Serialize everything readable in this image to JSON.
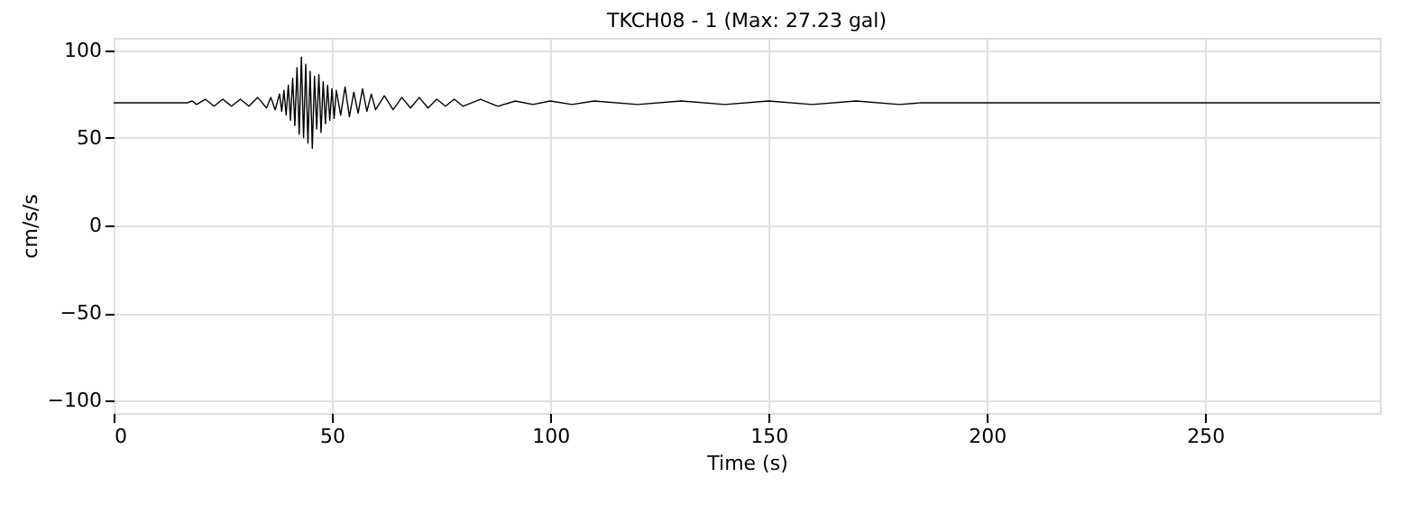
{
  "chart_data": {
    "type": "line",
    "title": "TKCH08 - 1 (Max: 27.23 gal)",
    "xlabel": "Time (s)",
    "ylabel": "cm/s/s",
    "x": [
      0,
      17,
      18,
      19,
      21,
      23,
      25,
      27,
      29,
      31,
      33,
      35,
      36,
      37,
      38,
      38.5,
      39,
      39.5,
      40,
      40.5,
      41,
      41.5,
      42,
      42.5,
      43,
      43.5,
      44,
      44.5,
      45,
      45.5,
      46,
      46.5,
      47,
      47.5,
      48,
      48.5,
      49,
      49.5,
      50,
      50.5,
      51,
      52,
      53,
      54,
      55,
      56,
      57,
      58,
      59,
      60,
      62,
      64,
      66,
      68,
      70,
      72,
      74,
      76,
      78,
      80,
      84,
      88,
      92,
      96,
      100,
      105,
      110,
      120,
      130,
      140,
      150,
      160,
      170,
      180,
      185,
      290
    ],
    "series": [
      {
        "color": "#000000",
        "values": [
          70,
          70,
          71,
          69,
          72,
          68,
          72,
          68,
          72,
          68,
          73,
          67,
          73,
          66,
          75,
          65,
          77,
          63,
          80,
          60,
          84,
          57,
          90,
          52,
          96,
          50,
          92,
          47,
          88,
          44,
          85,
          55,
          86,
          53,
          82,
          58,
          80,
          60,
          78,
          61,
          77,
          63,
          79,
          62,
          76,
          64,
          78,
          65,
          75,
          66,
          74,
          66,
          73,
          67,
          73,
          67,
          72,
          68,
          72,
          68,
          72,
          68,
          71,
          69,
          71,
          69,
          71,
          69,
          71,
          69,
          71,
          69,
          71,
          69,
          70,
          70
        ]
      }
    ],
    "xlim": [
      0,
      290
    ],
    "ylim": [
      -107,
      107
    ],
    "xticks": [
      0,
      50,
      100,
      150,
      200,
      250
    ],
    "yticks": [
      -100,
      -50,
      0,
      50,
      100
    ],
    "grid": true,
    "marker": "none",
    "line_style": "solid"
  }
}
